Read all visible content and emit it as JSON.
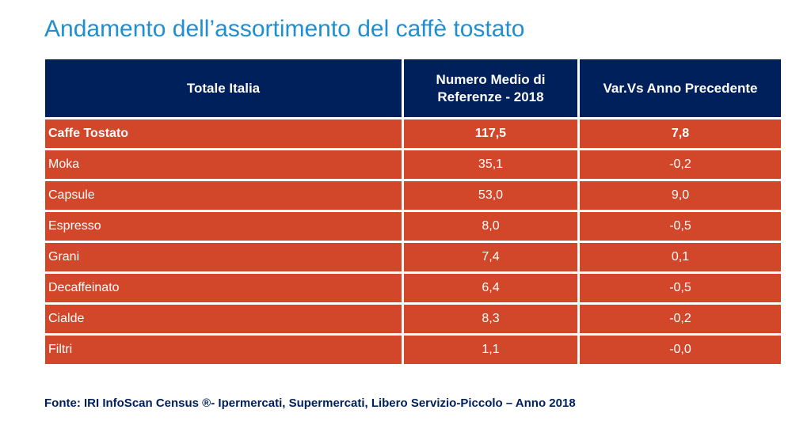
{
  "title": "Andamento dell’assortimento del caffè tostato",
  "table": {
    "headers": [
      "Totale Italia",
      "Numero Medio di Referenze - 2018",
      "Var.Vs Anno Precedente"
    ],
    "rows": [
      {
        "label": "Caffe Tostato",
        "value": "117,5",
        "variation": "7,8",
        "bold": true
      },
      {
        "label": "Moka",
        "value": "35,1",
        "variation": "-0,2"
      },
      {
        "label": "Capsule",
        "value": "53,0",
        "variation": "9,0"
      },
      {
        "label": "Espresso",
        "value": "8,0",
        "variation": "-0,5"
      },
      {
        "label": "Grani",
        "value": "7,4",
        "variation": "0,1"
      },
      {
        "label": "Decaffeinato",
        "value": "6,4",
        "variation": "-0,5"
      },
      {
        "label": "Cialde",
        "value": "8,3",
        "variation": "-0,2"
      },
      {
        "label": "Filtri",
        "value": "1,1",
        "variation": "-0,0"
      }
    ]
  },
  "source": "Fonte: IRI InfoScan Census ®- Ipermercati, Supermercati, Libero Servizio-Piccolo – Anno 2018",
  "colors": {
    "title": "#1f8fcf",
    "header_bg": "#00205c",
    "row_bg": "#d2472a",
    "source_text": "#00205c"
  }
}
